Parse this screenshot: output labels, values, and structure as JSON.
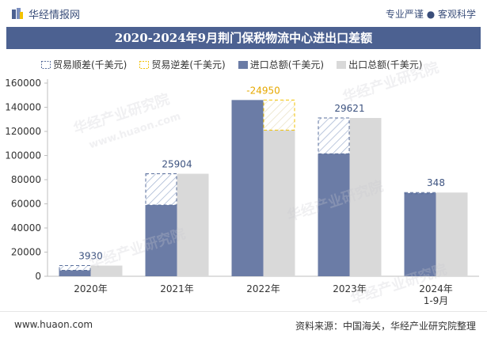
{
  "header": {
    "logo_text": "华经情报网",
    "tagline": "专业严谨 ● 客观科学"
  },
  "footer": {
    "website": "www.huaon.com",
    "source": "资料来源：中国海关，华经产业研究院整理"
  },
  "watermarks": [
    "华经产业研究院",
    "www.huaon.com"
  ],
  "colors": {
    "import": "#6b7ca6",
    "export": "#d9d9d9",
    "surplus_border": "#5a6f9c",
    "deficit_border": "#f2c200",
    "deficit_label": "#e6a800",
    "surplus_label": "#3d5380",
    "title_bg": "#4c6191"
  },
  "chart_data": {
    "type": "bar",
    "title": "2020-2024年9月荆门保税物流中心进出口差额",
    "legend": [
      "贸易顺差(千美元)",
      "贸易逆差(千美元)",
      "进口总额(千美元)",
      "出口总额(千美元)"
    ],
    "categories": [
      "2020年",
      "2021年",
      "2022年",
      "2023年",
      "2024年\n1-9月"
    ],
    "series": [
      {
        "name": "进口总额(千美元)",
        "values": [
          4900,
          59000,
          146000,
          101500,
          69000
        ]
      },
      {
        "name": "出口总额(千美元)",
        "values": [
          8830,
          84904,
          121050,
          131121,
          69348
        ]
      }
    ],
    "balance": [
      3930,
      25904,
      -24950,
      29621,
      348
    ],
    "balance_labels": [
      "3930",
      "25904",
      "-24950",
      "29621",
      "348"
    ],
    "ylim": [
      0,
      160000
    ],
    "yticks": [
      0,
      20000,
      40000,
      60000,
      80000,
      100000,
      120000,
      140000,
      160000
    ],
    "ytick_labels": [
      "0",
      "20000",
      "40000",
      "60000",
      "80000",
      "100000",
      "120000",
      "140000",
      "160000"
    ],
    "xlabel": "",
    "ylabel": ""
  }
}
